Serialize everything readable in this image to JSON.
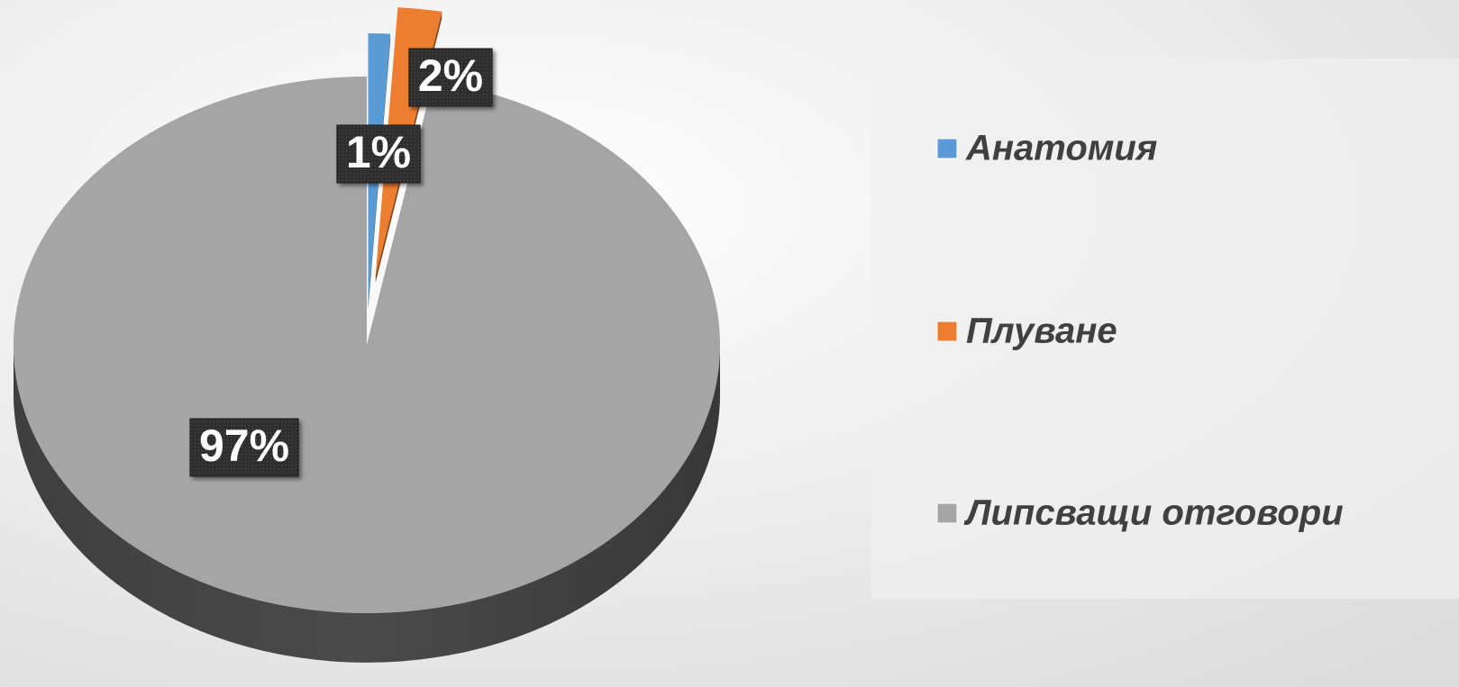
{
  "chart_data": {
    "type": "pie",
    "categories": [
      "Анатомия",
      "Плуване",
      "Липсващи отговори"
    ],
    "values": [
      1,
      2,
      97
    ],
    "value_labels": [
      "1%",
      "2%",
      "97%"
    ],
    "colors": [
      "#5b9bd5",
      "#ed7d31",
      "#a5a5a5"
    ],
    "legend": "right"
  }
}
